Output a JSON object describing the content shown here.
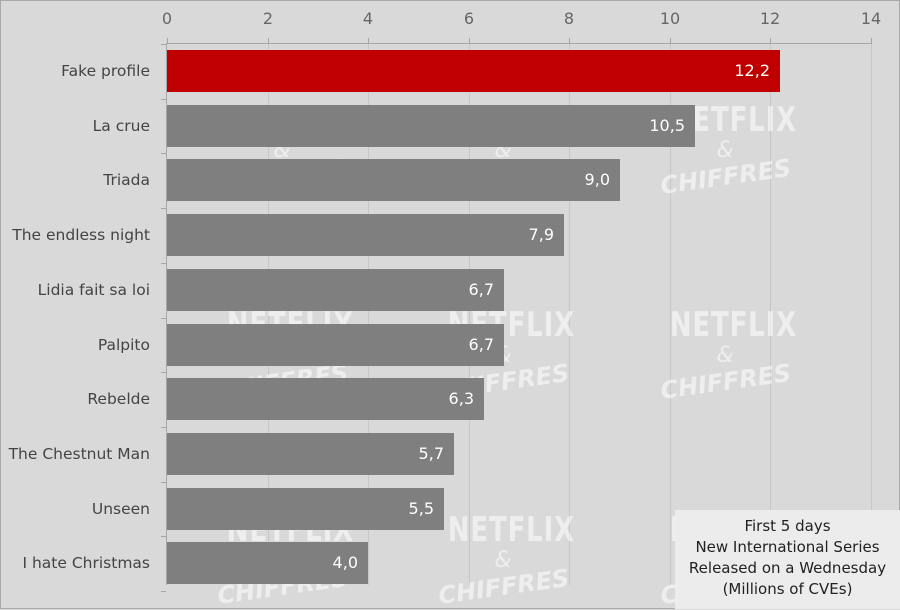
{
  "chart_data": {
    "type": "bar",
    "orientation": "horizontal",
    "title": "",
    "legend_box": [
      "First 5 days",
      "New International Series",
      "Released on a Wednesday",
      "(Millions of CVEs)"
    ],
    "xlabel": "",
    "ylabel": "",
    "xlim": [
      0,
      14
    ],
    "xticks": [
      "0",
      "2",
      "4",
      "6",
      "8",
      "10",
      "12",
      "14"
    ],
    "categories": [
      "Fake profile",
      "La crue",
      "Triada",
      "The endless night",
      "Lidia fait sa loi",
      "Palpito",
      "Rebelde",
      "The Chestnut Man",
      "Unseen",
      "I hate Christmas"
    ],
    "values": [
      12.2,
      10.5,
      9.0,
      7.9,
      6.7,
      6.7,
      6.3,
      5.7,
      5.5,
      4.0
    ],
    "value_labels": [
      "12,2",
      "10,5",
      "9,0",
      "7,9",
      "6,7",
      "6,7",
      "6,3",
      "5,7",
      "5,5",
      "4,0"
    ],
    "highlight_index": 0,
    "colors": {
      "highlight": "#c00000",
      "default": "#7f7f7f",
      "background": "#d9d9d9"
    },
    "grid": true,
    "axis_position": "top",
    "watermark": {
      "line1": "NETFLIX",
      "line2": "&",
      "line3": "CHIFFRES"
    }
  }
}
